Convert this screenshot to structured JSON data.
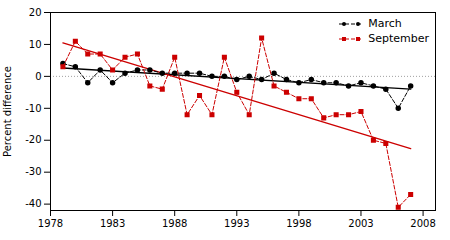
{
  "chart_data": {
    "type": "line",
    "x": [
      1979,
      1980,
      1981,
      1982,
      1983,
      1984,
      1985,
      1986,
      1987,
      1988,
      1989,
      1990,
      1991,
      1992,
      1993,
      1994,
      1995,
      1996,
      1997,
      1998,
      1999,
      2000,
      2001,
      2002,
      2003,
      2004,
      2005,
      2006,
      2007
    ],
    "series": [
      {
        "name": "March",
        "color": "#000000",
        "marker": "circle",
        "line_style": "dashed",
        "values": [
          4,
          3,
          -2,
          2,
          -2,
          1,
          2,
          2,
          1,
          1,
          1,
          1,
          0,
          0,
          -1,
          0,
          -1,
          1,
          -1,
          -2,
          -1,
          -2,
          -2,
          -3,
          -2,
          -3,
          -4,
          -10,
          -3
        ],
        "trend": {
          "x": [
            1979,
            2007
          ],
          "values": [
            2.613793,
            -3.993103
          ]
        }
      },
      {
        "name": "September",
        "color": "#cc0000",
        "marker": "square",
        "line_style": "dashed",
        "values": [
          3,
          11,
          7,
          7,
          2,
          6,
          7,
          -3,
          -4,
          6,
          -12,
          -6,
          -12,
          6,
          -5,
          -12,
          12,
          -3,
          -5,
          -7,
          -7,
          -13,
          -12,
          -12,
          -11,
          -20,
          -21,
          -41,
          -37
        ],
        "trend": {
          "x": [
            1979,
            2007
          ],
          "values": [
            10.475862,
            -22.613793
          ]
        }
      }
    ],
    "hline": 0,
    "xlim": [
      1978,
      2009
    ],
    "ylim": [
      -42,
      20
    ],
    "xticks": [
      1978,
      1983,
      1988,
      1993,
      1998,
      2003,
      2008
    ],
    "yticks": [
      20,
      10,
      0,
      -10,
      -20,
      -30,
      -40
    ],
    "ylabel": "Percent difference",
    "legend": "upper right",
    "grid": false
  }
}
